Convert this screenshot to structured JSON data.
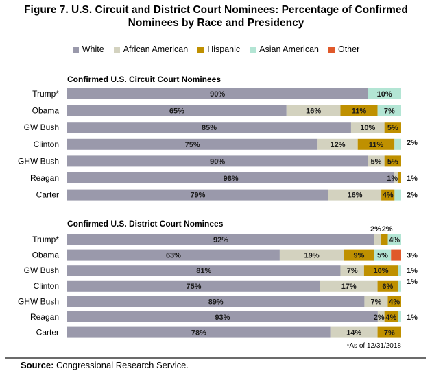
{
  "title_line1": "Figure 7. U.S. Circuit and District Court Nominees: Percentage of Confirmed",
  "title_line2": "Nominees by Race and Presidency",
  "source_label": "Source:",
  "source_text": "Congressional Research Service.",
  "chart_data": {
    "type": "bar",
    "orientation": "horizontal",
    "stacked": true,
    "legend_position": "top",
    "series_names": [
      "White",
      "African American",
      "Hispanic",
      "Asian American",
      "Other"
    ],
    "colors": [
      "#9a99ab",
      "#d3d2bf",
      "#bf9000",
      "#b3e5d4",
      "#e0592a"
    ],
    "panels": [
      {
        "title": "Confirmed U.S. Circuit Court Nominees",
        "categories": [
          "Trump*",
          "Obama",
          "GW Bush",
          "Clinton",
          "GHW Bush",
          "Reagan",
          "Carter"
        ],
        "values": [
          [
            90,
            0,
            0,
            10,
            0
          ],
          [
            65,
            16,
            11,
            7,
            0
          ],
          [
            85,
            10,
            5,
            0,
            0
          ],
          [
            75,
            12,
            11,
            2,
            0
          ],
          [
            90,
            5,
            5,
            0,
            0
          ],
          [
            98,
            1,
            1,
            0,
            0
          ],
          [
            79,
            16,
            4,
            2,
            0
          ]
        ]
      },
      {
        "title": "Confirmed U.S. District Court Nominees",
        "categories": [
          "Trump*",
          "Obama",
          "GW Bush",
          "Clinton",
          "GHW Bush",
          "Reagan",
          "Carter"
        ],
        "values": [
          [
            92,
            2,
            2,
            4,
            0
          ],
          [
            63,
            19,
            9,
            5,
            3
          ],
          [
            81,
            7,
            10,
            1,
            0
          ],
          [
            75,
            17,
            6,
            1,
            0
          ],
          [
            89,
            7,
            4,
            0,
            0
          ],
          [
            93,
            2,
            4,
            1,
            0
          ],
          [
            78,
            14,
            7,
            0,
            0
          ]
        ],
        "footnote": "*As of 12/31/2018"
      }
    ]
  }
}
